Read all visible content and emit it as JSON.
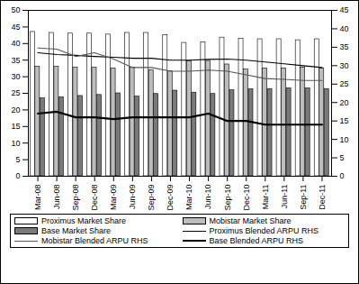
{
  "chart_data": {
    "type": "bar",
    "categories": [
      "Mar-08",
      "Jun-08",
      "Sep-08",
      "Dec-08",
      "Mar-09",
      "Jun-09",
      "Sep-09",
      "Dec-09",
      "Mar-10",
      "Jun-10",
      "Sep-10",
      "Dec-10",
      "Mar-11",
      "Jun-11",
      "Sep-11",
      "Dec-11"
    ],
    "series": [
      {
        "name": "Proximus Market Share",
        "type": "bar",
        "color": "#ffffff",
        "values": [
          43.5,
          43.2,
          43,
          43,
          42.7,
          43.2,
          43.2,
          42.5,
          40.2,
          40.3,
          41.8,
          41.5,
          41.3,
          41.3,
          41,
          41.3
        ]
      },
      {
        "name": "Mobistar Market Share",
        "type": "bar",
        "color": "#bdbdbd",
        "values": [
          33,
          33,
          32.7,
          32.7,
          32.5,
          32.7,
          32,
          31.6,
          34.7,
          34.8,
          33.7,
          32.2,
          32.5,
          32.5,
          32.8,
          32.5
        ]
      },
      {
        "name": "Base Market Share",
        "type": "bar",
        "color": "#7a7a7a",
        "values": [
          23.5,
          23.8,
          24.2,
          24.5,
          25,
          24,
          24.8,
          25.8,
          25.2,
          24.8,
          25.9,
          26.2,
          26.3,
          26.5,
          26.5,
          26.3
        ]
      },
      {
        "name": "Proximus Blended ARPU RHS",
        "type": "line",
        "axis": "y2",
        "color": "#000000",
        "values": [
          33.5,
          33,
          32.8,
          32.5,
          32.3,
          32,
          32,
          31.5,
          31.5,
          31.7,
          31.8,
          31.5,
          31,
          30.5,
          30,
          29.5
        ]
      },
      {
        "name": "Mobistar Blended ARPU RHS",
        "type": "line",
        "axis": "y2",
        "color": "#555555",
        "values": [
          34.8,
          34.5,
          32.5,
          33.5,
          31.8,
          29.5,
          29.5,
          28.5,
          28.5,
          28.8,
          28.5,
          27.5,
          26.5,
          26.3,
          26,
          26
        ]
      },
      {
        "name": "Base Blended ARPU RHS",
        "type": "line",
        "axis": "y2",
        "color": "#000000",
        "values": [
          17,
          17.5,
          16,
          16,
          15.5,
          16,
          16,
          16,
          16,
          17,
          15,
          15,
          14,
          14,
          14,
          14
        ]
      }
    ],
    "ylim": [
      0,
      50
    ],
    "yticks": [
      0,
      5,
      10,
      15,
      20,
      25,
      30,
      35,
      40,
      45,
      50
    ],
    "y2lim": [
      0,
      45
    ],
    "y2ticks": [
      0,
      5,
      10,
      15,
      20,
      25,
      30,
      35,
      40,
      45
    ],
    "grid": false,
    "legend": "bottom"
  }
}
